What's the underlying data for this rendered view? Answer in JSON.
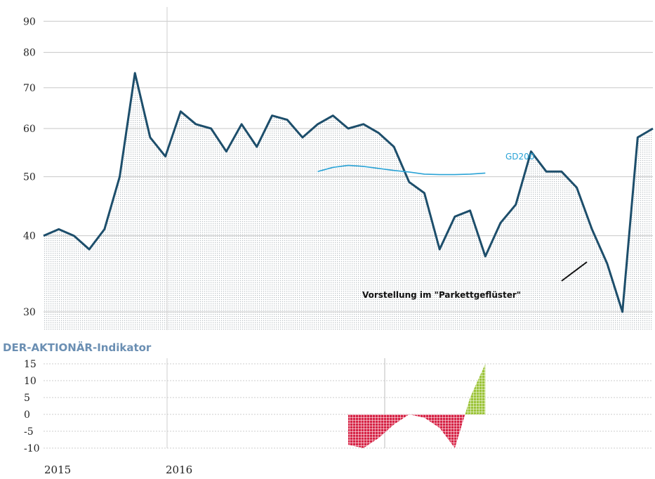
{
  "chart_data": [
    {
      "type": "line",
      "title": "",
      "xlabel": "",
      "ylabel": "",
      "ylim": [
        28,
        92
      ],
      "y_scale": "log",
      "y_ticks": [
        30,
        40,
        50,
        60,
        70,
        80,
        90
      ],
      "x_tick_labels": [
        "2015",
        "2016"
      ],
      "grid": true,
      "series": [
        {
          "name": "",
          "color": "#1d4e6b",
          "x": [
            "2015-01",
            "2015-02",
            "2015-03",
            "2015-04",
            "2015-05",
            "2015-06",
            "2015-07",
            "2015-08",
            "2015-09",
            "2015-10",
            "2015-11",
            "2015-12",
            "2016-01",
            "2016-02",
            "2016-03",
            "2016-04",
            "2016-05",
            "2016-06",
            "2016-07",
            "2016-08",
            "2016-09",
            "2016-10",
            "2016-11",
            "2016-12",
            "2017-01",
            "2017-02",
            "2017-03",
            "2017-04",
            "2017-05",
            "2017-06",
            "2017-07",
            "2017-08",
            "2017-09",
            "2017-10",
            "2017-11",
            "2017-12",
            "2018-01",
            "2018-02",
            "2018-03",
            "2018-04",
            "2018-05"
          ],
          "values": [
            40,
            41,
            40,
            38,
            41,
            50,
            74,
            58,
            54,
            64,
            61,
            60,
            55,
            61,
            56,
            63,
            62,
            58,
            61,
            63,
            60,
            61,
            59,
            56,
            49,
            47,
            38,
            43,
            44,
            37,
            42,
            45,
            55,
            51,
            51,
            48,
            41,
            36,
            30,
            58,
            60
          ]
        },
        {
          "name": "GD200",
          "color": "#2aa3d6",
          "x": [
            "2016-07",
            "2016-08",
            "2016-09",
            "2016-10",
            "2016-11",
            "2016-12",
            "2017-01",
            "2017-02",
            "2017-03",
            "2017-04",
            "2017-05",
            "2017-06"
          ],
          "values": [
            51.0,
            51.8,
            52.2,
            52.0,
            51.6,
            51.2,
            50.9,
            50.5,
            50.4,
            50.4,
            50.5,
            50.7
          ]
        }
      ],
      "annotations": [
        {
          "text": "GD200"
        },
        {
          "text": "Vorstellung im  \"Parkettgeflüster\""
        }
      ]
    },
    {
      "type": "area",
      "title": "DER-AKTIONÄR-Indikator",
      "ylim": [
        -10,
        15
      ],
      "y_ticks": [
        15,
        10,
        5,
        0,
        -5,
        -10
      ],
      "colors": {
        "positive": "#9cc43a",
        "negative": "#d62446"
      },
      "x": [
        "2016-09",
        "2016-10",
        "2016-11",
        "2016-12",
        "2017-01",
        "2017-02",
        "2017-03",
        "2017-04",
        "2017-05",
        "2017-06"
      ],
      "values": [
        -9,
        -10,
        -7,
        -3,
        0,
        -1,
        -4,
        -10,
        5,
        15
      ]
    }
  ]
}
